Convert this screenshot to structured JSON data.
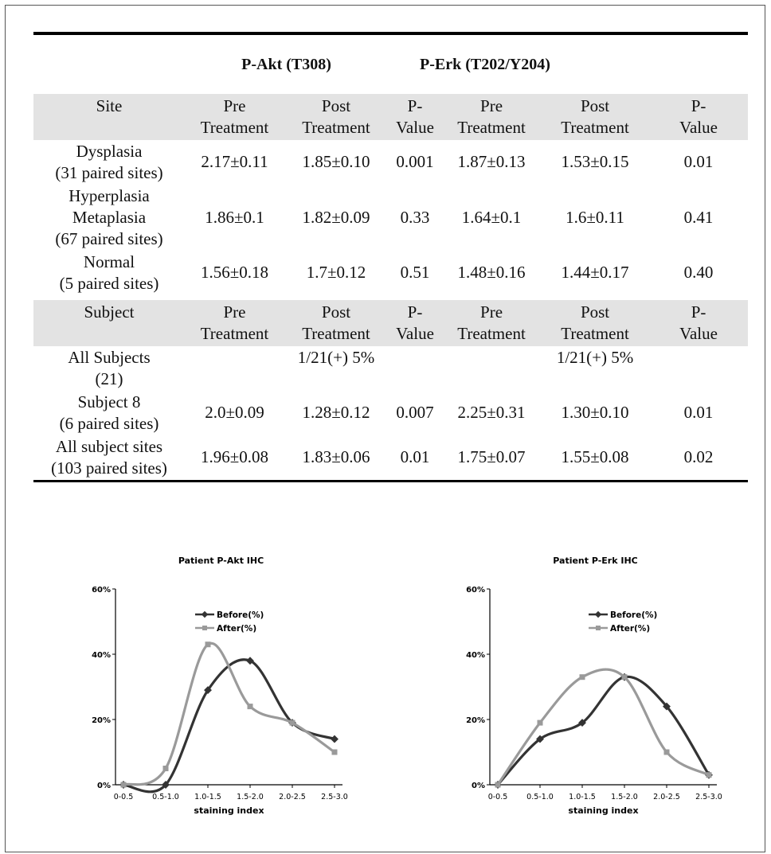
{
  "table": {
    "group_headers": [
      "P-Akt (T308)",
      "P-Erk (T202/Y204)"
    ],
    "site_header": [
      "Site",
      "Pre\nTreatment",
      "Post\nTreatment",
      "P-\nValue",
      "Pre\nTreatment",
      "Post\nTreatment",
      "P-\nValue"
    ],
    "site_rows": [
      {
        "label": [
          "Dysplasia",
          "(31 paired sites)"
        ],
        "akt_pre": "2.17±0.11",
        "akt_post": "1.85±0.10",
        "akt_p": "0.001",
        "erk_pre": "1.87±0.13",
        "erk_post": "1.53±0.15",
        "erk_p": "0.01"
      },
      {
        "label": [
          "Hyperplasia",
          "Metaplasia",
          "(67 paired sites)"
        ],
        "akt_pre": "1.86±0.1",
        "akt_post": "1.82±0.09",
        "akt_p": "0.33",
        "erk_pre": "1.64±0.1",
        "erk_post": "1.6±0.11",
        "erk_p": "0.41"
      },
      {
        "label": [
          "Normal",
          "(5 paired sites)"
        ],
        "akt_pre": "1.56±0.18",
        "akt_post": "1.7±0.12",
        "akt_p": "0.51",
        "erk_pre": "1.48±0.16",
        "erk_post": "1.44±0.17",
        "erk_p": "0.40"
      }
    ],
    "subject_header": [
      "Subject",
      "Pre\nTreatment",
      "Post\nTreatment",
      "P-\nValue",
      "Pre\nTreatment",
      "Post\nTreatment",
      "P-\nValue"
    ],
    "subject_rows": [
      {
        "label": [
          "All Subjects",
          "(21)"
        ],
        "akt_pre": "",
        "akt_post": "1/21(+) 5%",
        "akt_p": "",
        "erk_pre": "",
        "erk_post": "1/21(+) 5%",
        "erk_p": ""
      },
      {
        "label": [
          "Subject 8",
          "(6 paired sites)"
        ],
        "akt_pre": "2.0±0.09",
        "akt_post": "1.28±0.12",
        "akt_p": "0.007",
        "erk_pre": "2.25±0.31",
        "erk_post": "1.30±0.10",
        "erk_p": "0.01"
      },
      {
        "label": [
          "All subject sites",
          "(103 paired sites)"
        ],
        "akt_pre": "1.96±0.08",
        "akt_post": "1.83±0.06",
        "akt_p": "0.01",
        "erk_pre": "1.75±0.07",
        "erk_post": "1.55±0.08",
        "erk_p": "0.02"
      }
    ]
  },
  "colors": {
    "before": "#333333",
    "after": "#9a9a9a",
    "header_bg": "#e3e3e3"
  },
  "chart_data": [
    {
      "type": "line",
      "title": "Patient P-Akt IHC",
      "xlabel": "staining index",
      "ylabel": "",
      "categories": [
        "0-0.5",
        "0.5-1.0",
        "1.0-1.5",
        "1.5-2.0",
        "2.0-2.5",
        "2.5-3.0"
      ],
      "yticks": [
        "0%",
        "20%",
        "40%",
        "60%"
      ],
      "ylim": [
        0,
        60
      ],
      "legend_position": "top-center",
      "series": [
        {
          "name": "Before(%)",
          "values": [
            0,
            0,
            29,
            38,
            19,
            14
          ]
        },
        {
          "name": "After(%)",
          "values": [
            0,
            5,
            43,
            24,
            19,
            10
          ]
        }
      ]
    },
    {
      "type": "line",
      "title": "Patient P-Erk IHC",
      "xlabel": "staining index",
      "ylabel": "",
      "categories": [
        "0-0.5",
        "0.5-1.0",
        "1.0-1.5",
        "1.5-2.0",
        "2.0-2.5",
        "2.5-3.0"
      ],
      "yticks": [
        "0%",
        "20%",
        "40%",
        "60%"
      ],
      "ylim": [
        0,
        60
      ],
      "legend_position": "top-center",
      "series": [
        {
          "name": "Before(%)",
          "values": [
            0,
            14,
            19,
            33,
            24,
            3
          ]
        },
        {
          "name": "After(%)",
          "values": [
            0,
            19,
            33,
            33,
            10,
            3
          ]
        }
      ]
    }
  ]
}
